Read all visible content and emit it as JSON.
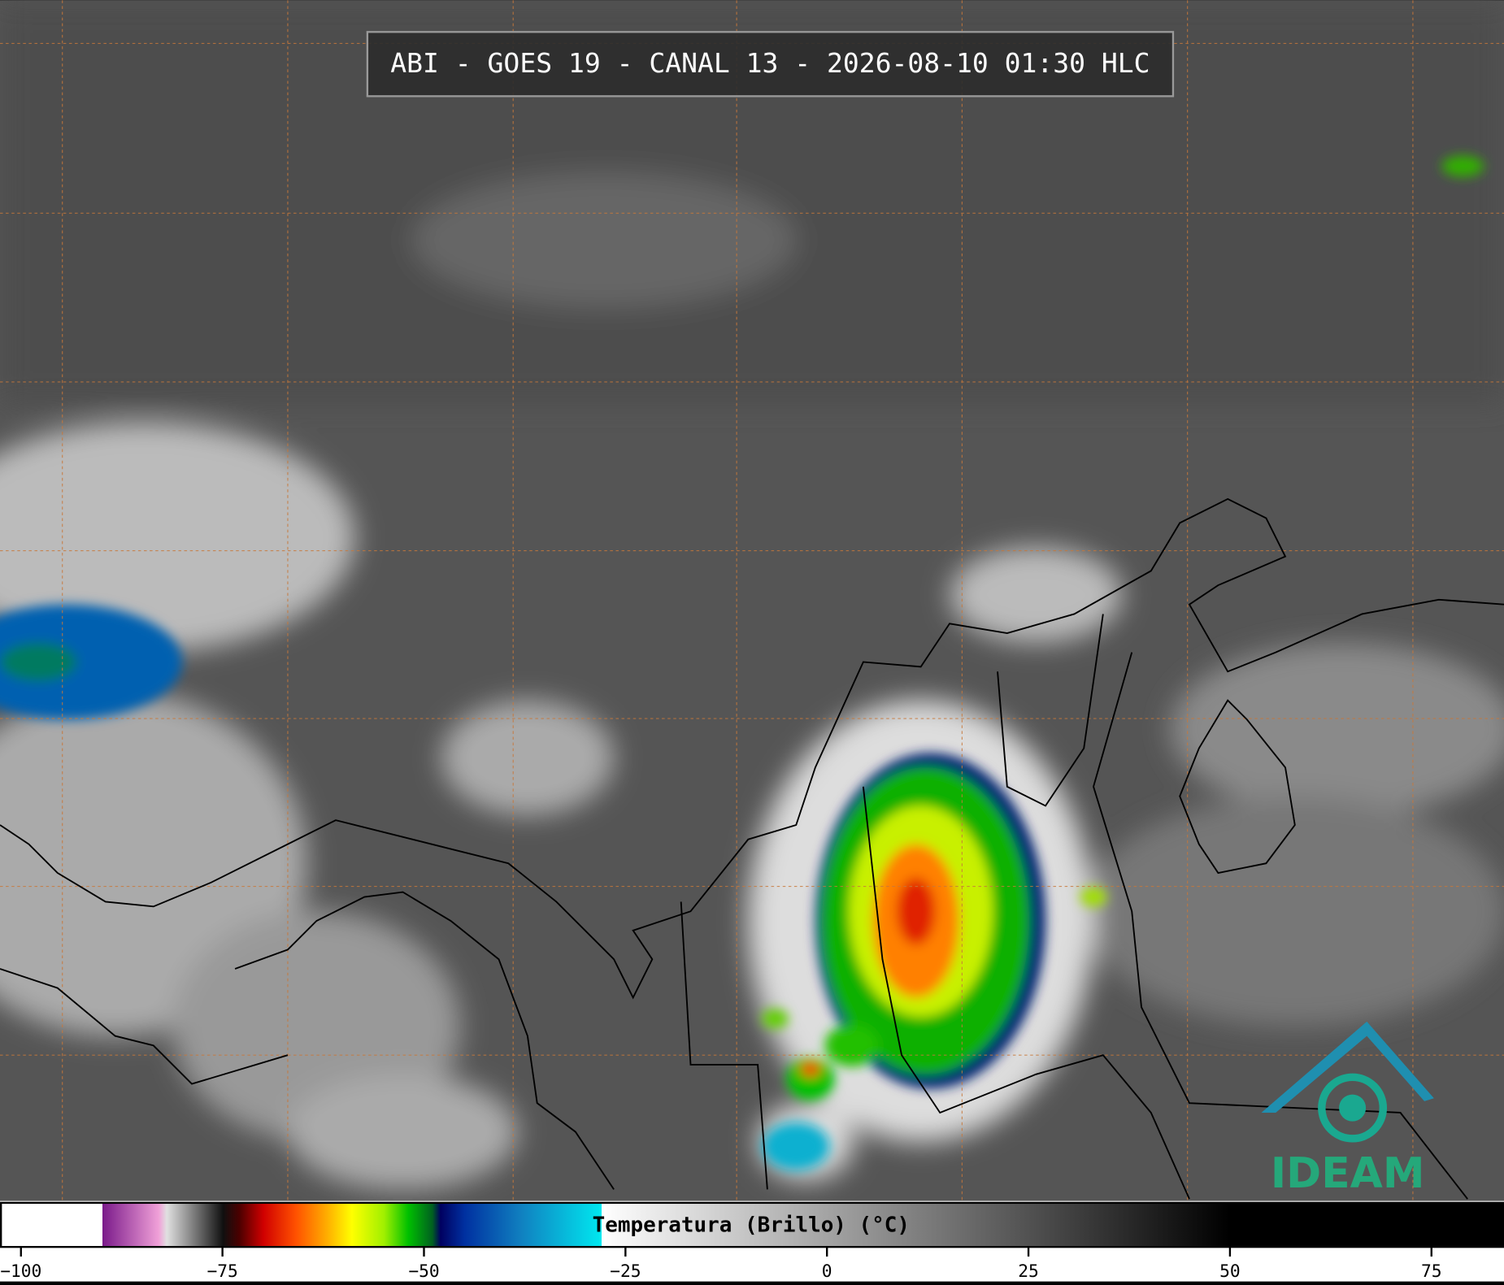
{
  "header": {
    "title": "ABI - GOES 19 - CANAL 13 - 2026-08-10 01:30 HLC"
  },
  "colorbar": {
    "label": "Temperatura (Brillo) (°C)",
    "range": [
      -102.6,
      84
    ],
    "ticks": [
      {
        "value": -100,
        "label": "−100"
      },
      {
        "value": -75,
        "label": "−75"
      },
      {
        "value": -50,
        "label": "−50"
      },
      {
        "value": -25,
        "label": "−25"
      },
      0,
      25,
      50,
      75
    ],
    "stops": [
      [
        -102.6,
        "#ffffff"
      ],
      [
        -90,
        "#ffffff"
      ],
      [
        -90,
        "#7a1a8a"
      ],
      [
        -83,
        "#f0a0d8"
      ],
      [
        -82,
        "#e0e0e0"
      ],
      [
        -75,
        "#101010"
      ],
      [
        -73,
        "#4a0000"
      ],
      [
        -70,
        "#d00000"
      ],
      [
        -66,
        "#ff5000"
      ],
      [
        -62,
        "#ffb000"
      ],
      [
        -59,
        "#ffff00"
      ],
      [
        -55,
        "#a0f000"
      ],
      [
        -52,
        "#00c000"
      ],
      [
        -49,
        "#006020"
      ],
      [
        -48,
        "#000060"
      ],
      [
        -45,
        "#0030a0"
      ],
      [
        -38,
        "#1080c0"
      ],
      [
        -28,
        "#00e8f0"
      ],
      [
        -28,
        "#ffffff"
      ],
      [
        50,
        "#000000"
      ],
      [
        84,
        "#000000"
      ]
    ]
  },
  "logo": {
    "text": "IDEAM"
  }
}
